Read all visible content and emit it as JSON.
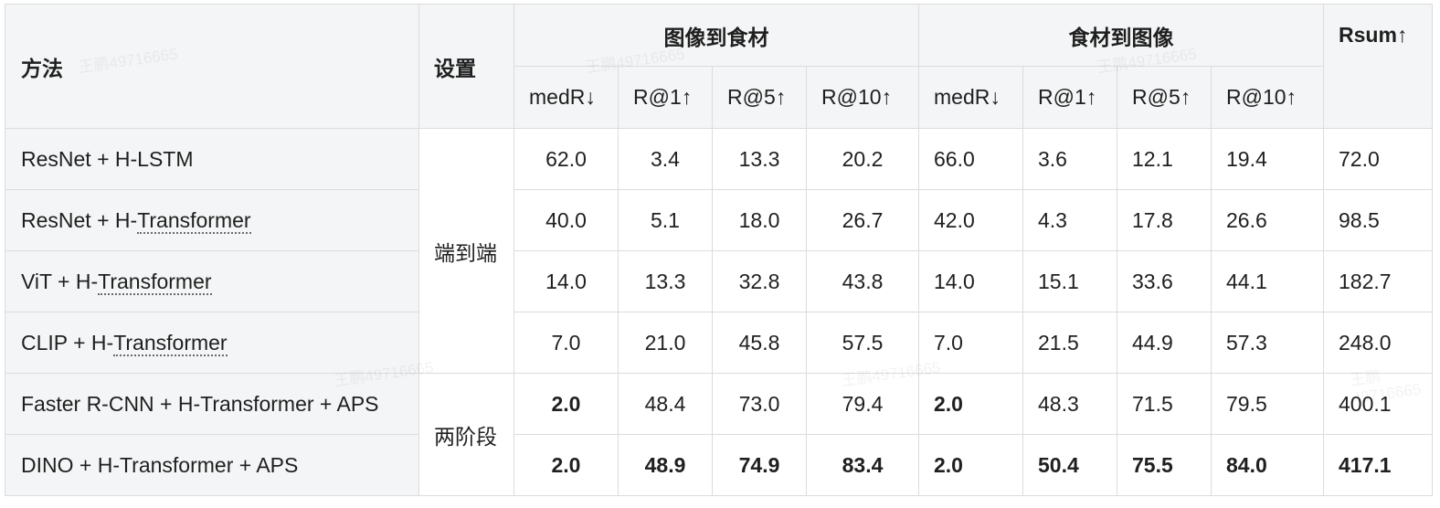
{
  "header": {
    "method": "方法",
    "setting": "设置",
    "group1": "图像到食材",
    "group2": "食材到图像",
    "rsum": "Rsum↑",
    "sub": [
      "medR↓",
      "R@1↑",
      "R@5↑",
      "R@10↑",
      "medR↓",
      "R@1↑",
      "R@5↑",
      "R@10↑"
    ]
  },
  "settings": {
    "end_to_end": "端到端",
    "two_stage": "两阶段"
  },
  "rows": [
    {
      "method_prefix": "ResNet + H-LSTM",
      "method_link": "",
      "method_suffix": "",
      "cells": [
        "62.0",
        "3.4",
        "13.3",
        "20.2",
        "66.0",
        "3.6",
        "12.1",
        "19.4",
        "72.0"
      ]
    },
    {
      "method_prefix": "ResNet + H-",
      "method_link": "Transformer",
      "method_suffix": "",
      "cells": [
        "40.0",
        "5.1",
        "18.0",
        "26.7",
        "42.0",
        "4.3",
        "17.8",
        "26.6",
        "98.5"
      ]
    },
    {
      "method_prefix": "ViT + H-",
      "method_link": "Transformer",
      "method_suffix": "",
      "cells": [
        "14.0",
        "13.3",
        "32.8",
        "43.8",
        "14.0",
        "15.1",
        "33.6",
        "44.1",
        "182.7"
      ]
    },
    {
      "method_prefix": "CLIP + H-",
      "method_link": "Transformer",
      "method_suffix": "",
      "cells": [
        "7.0",
        "21.0",
        "45.8",
        "57.5",
        "7.0",
        "21.5",
        "44.9",
        "57.3",
        "248.0"
      ]
    },
    {
      "method_prefix": "Faster R-CNN + H-Transformer + APS",
      "method_link": "",
      "method_suffix": "",
      "cells": [
        "2.0",
        "48.4",
        "73.0",
        "79.4",
        "2.0",
        "48.3",
        "71.5",
        "79.5",
        "400.1"
      ]
    },
    {
      "method_prefix": "DINO + H-Transformer + APS",
      "method_link": "",
      "method_suffix": "",
      "cells": [
        "2.0",
        "48.9",
        "74.9",
        "83.4",
        "2.0",
        "50.4",
        "75.5",
        "84.0",
        "417.1"
      ]
    }
  ],
  "watermark": "王鹏49716665"
}
